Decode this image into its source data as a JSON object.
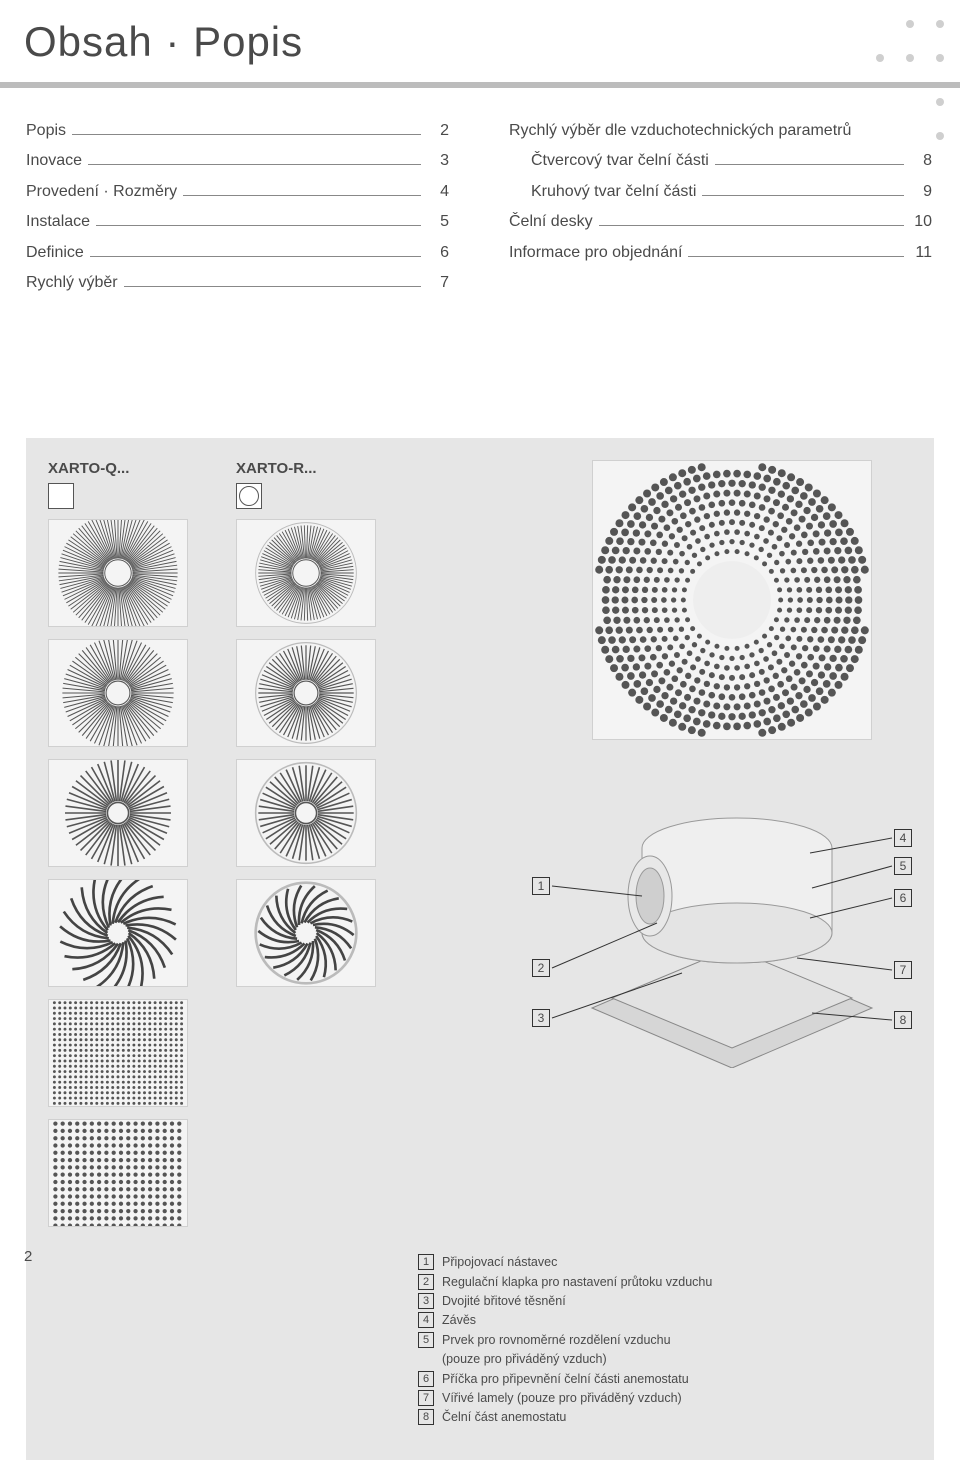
{
  "title": "Obsah · Popis",
  "toc_left": [
    {
      "label": "Popis",
      "page": "2"
    },
    {
      "label": "Inovace",
      "page": "3"
    },
    {
      "label": "Provedení · Rozměry",
      "page": "4"
    },
    {
      "label": "Instalace",
      "page": "5"
    },
    {
      "label": "Definice",
      "page": "6"
    },
    {
      "label": "Rychlý výběr",
      "page": "7"
    }
  ],
  "toc_right_header": {
    "label": "Rychlý výběr dle vzduchotechnických parametrů",
    "page": ""
  },
  "toc_right": [
    {
      "label": "Čtvercový tvar čelní části",
      "page": "8",
      "indent": true
    },
    {
      "label": "Kruhový tvar čelní části",
      "page": "9",
      "indent": true
    },
    {
      "label": "Čelní desky",
      "page": "10"
    },
    {
      "label": "Informace pro objednání",
      "page": "11"
    }
  ],
  "variant_q": "XARTO-Q...",
  "variant_r": "XARTO-R...",
  "callouts": [
    "1",
    "2",
    "3",
    "4",
    "5",
    "6",
    "7",
    "8"
  ],
  "legend": [
    "Připojovací nástavec",
    "Regulační klapka pro nastavení průtoku vzduchu",
    "Dvojité břitové těsnění",
    "Závěs",
    "Prvek pro rovnoměrné rozdělení vzduchu\n(pouze pro přiváděný vzduch)",
    "Příčka pro připevnění čelní části anemostatu",
    "Vířivé lamely (pouze pro přiváděný vzduch)",
    "Čelní část anemostatu"
  ],
  "page_number": "2",
  "colors": {
    "bg_panel": "#e6e6e6",
    "thumb_bg": "#f4f4f4",
    "stroke": "#555555",
    "title_rule": "#bcbcbc"
  }
}
